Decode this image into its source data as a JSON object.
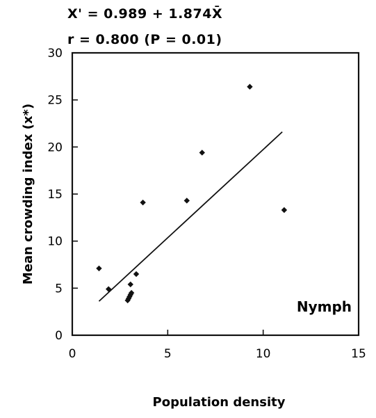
{
  "chart_data": {
    "type": "scatter",
    "equation_line1": "X' = 0.989 + 1.874X̄",
    "equation_line2": "r  = 0.800 (P = 0.01)",
    "xlabel": "Population density",
    "ylabel": "Mean crowding index (x*)",
    "annotation": "Nymph",
    "xlim": [
      0,
      15
    ],
    "ylim": [
      0,
      30
    ],
    "xticks": [
      0,
      5,
      10,
      15
    ],
    "yticks": [
      0,
      5,
      10,
      15,
      20,
      25,
      30
    ],
    "grid": false,
    "points": [
      {
        "x": 1.4,
        "y": 7.1
      },
      {
        "x": 1.9,
        "y": 4.9
      },
      {
        "x": 2.9,
        "y": 3.7
      },
      {
        "x": 2.95,
        "y": 3.9
      },
      {
        "x": 3.0,
        "y": 4.1
      },
      {
        "x": 3.05,
        "y": 4.3
      },
      {
        "x": 3.1,
        "y": 4.5
      },
      {
        "x": 3.05,
        "y": 5.4
      },
      {
        "x": 3.35,
        "y": 6.5
      },
      {
        "x": 3.7,
        "y": 14.1
      },
      {
        "x": 6.0,
        "y": 14.3
      },
      {
        "x": 6.8,
        "y": 19.4
      },
      {
        "x": 9.3,
        "y": 26.4
      },
      {
        "x": 11.1,
        "y": 13.3
      }
    ],
    "regression": {
      "intercept": 0.989,
      "slope": 1.874,
      "x_range": [
        1.4,
        11.0
      ]
    }
  }
}
